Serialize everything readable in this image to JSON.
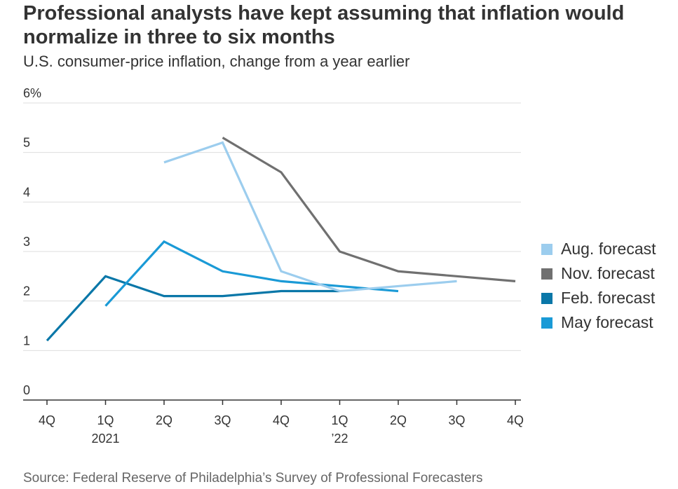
{
  "title": "Professional analysts have kept assuming that inflation would normalize in three to six months",
  "subtitle": "U.S. consumer-price inflation, change from a year earlier",
  "source": "Source: Federal Reserve of Philadelphia’s Survey of Professional Forecasters",
  "chart_data": {
    "type": "line",
    "categories": [
      "4Q",
      "1Q",
      "2Q",
      "3Q",
      "4Q",
      "1Q",
      "2Q",
      "3Q",
      "4Q"
    ],
    "category_sublabels": [
      "",
      "2021",
      "",
      "",
      "",
      "’22",
      "",
      "",
      ""
    ],
    "y_ticks": [
      0,
      1,
      2,
      3,
      4,
      5,
      6
    ],
    "y_tick_labels": [
      "0",
      "1",
      "2",
      "3",
      "4",
      "5",
      "6%"
    ],
    "ylim": [
      0,
      6
    ],
    "grid": true,
    "legend_position": "right",
    "series": [
      {
        "name": "Feb. forecast",
        "color": "#0A77A8",
        "values": [
          1.2,
          2.5,
          2.1,
          2.1,
          2.2,
          2.2,
          null,
          null,
          null
        ]
      },
      {
        "name": "May forecast",
        "color": "#1A9AD6",
        "values": [
          null,
          1.9,
          3.2,
          2.6,
          2.4,
          2.3,
          2.2,
          null,
          null
        ]
      },
      {
        "name": "Aug. forecast",
        "color": "#9CCDEE",
        "values": [
          null,
          null,
          4.8,
          5.2,
          2.6,
          2.2,
          2.3,
          2.4,
          null
        ]
      },
      {
        "name": "Nov. forecast",
        "color": "#707070",
        "values": [
          null,
          null,
          null,
          5.3,
          4.6,
          3.0,
          2.6,
          2.5,
          2.4
        ]
      }
    ],
    "legend_order": [
      "Aug. forecast",
      "Nov. forecast",
      "Feb. forecast",
      "May forecast"
    ]
  }
}
